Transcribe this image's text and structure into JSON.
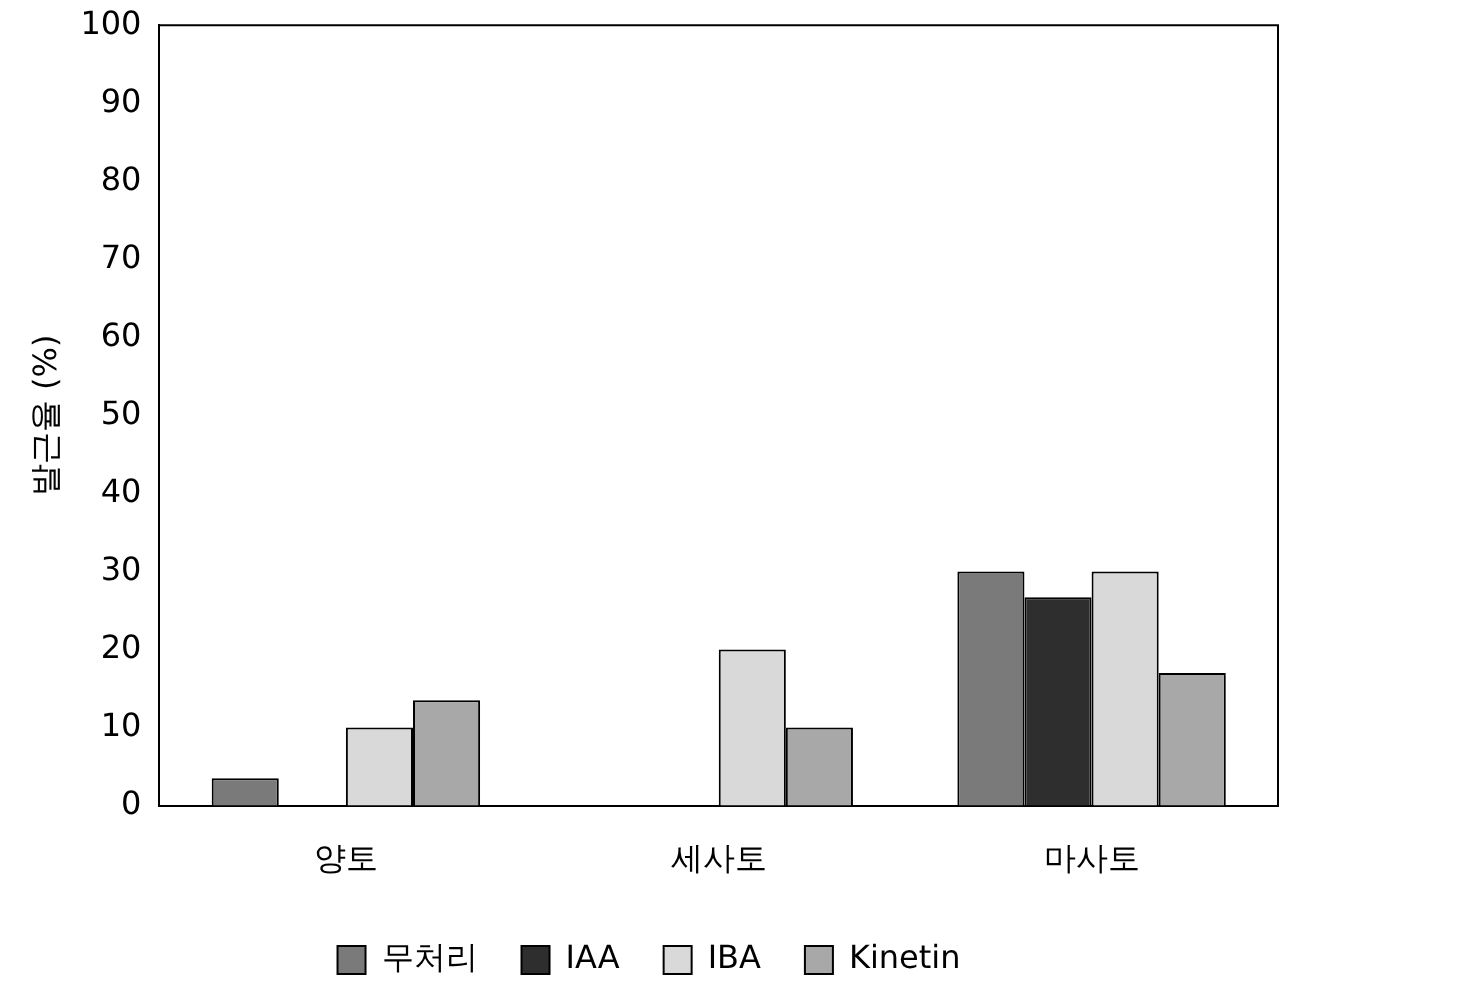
{
  "chart_data": {
    "type": "bar",
    "ylabel": "발근율 (%)",
    "categories": [
      "양토",
      "세사토",
      "마사토"
    ],
    "series": [
      {
        "name": "무처리",
        "color": "#7a7a7a",
        "values": [
          3.5,
          0,
          30
        ]
      },
      {
        "name": "IAA",
        "color": "#2e2e2e",
        "values": [
          0,
          0,
          26.7
        ]
      },
      {
        "name": "IBA",
        "color": "#d9d9d9",
        "values": [
          10,
          20,
          30
        ]
      },
      {
        "name": "Kinetin",
        "color": "#a8a8a8",
        "values": [
          13.5,
          10,
          17
        ]
      }
    ],
    "ylim": [
      0,
      100
    ],
    "yticks": [
      0,
      10,
      20,
      30,
      40,
      50,
      60,
      70,
      80,
      90,
      100
    ],
    "grid": false,
    "legend": "bottom"
  }
}
